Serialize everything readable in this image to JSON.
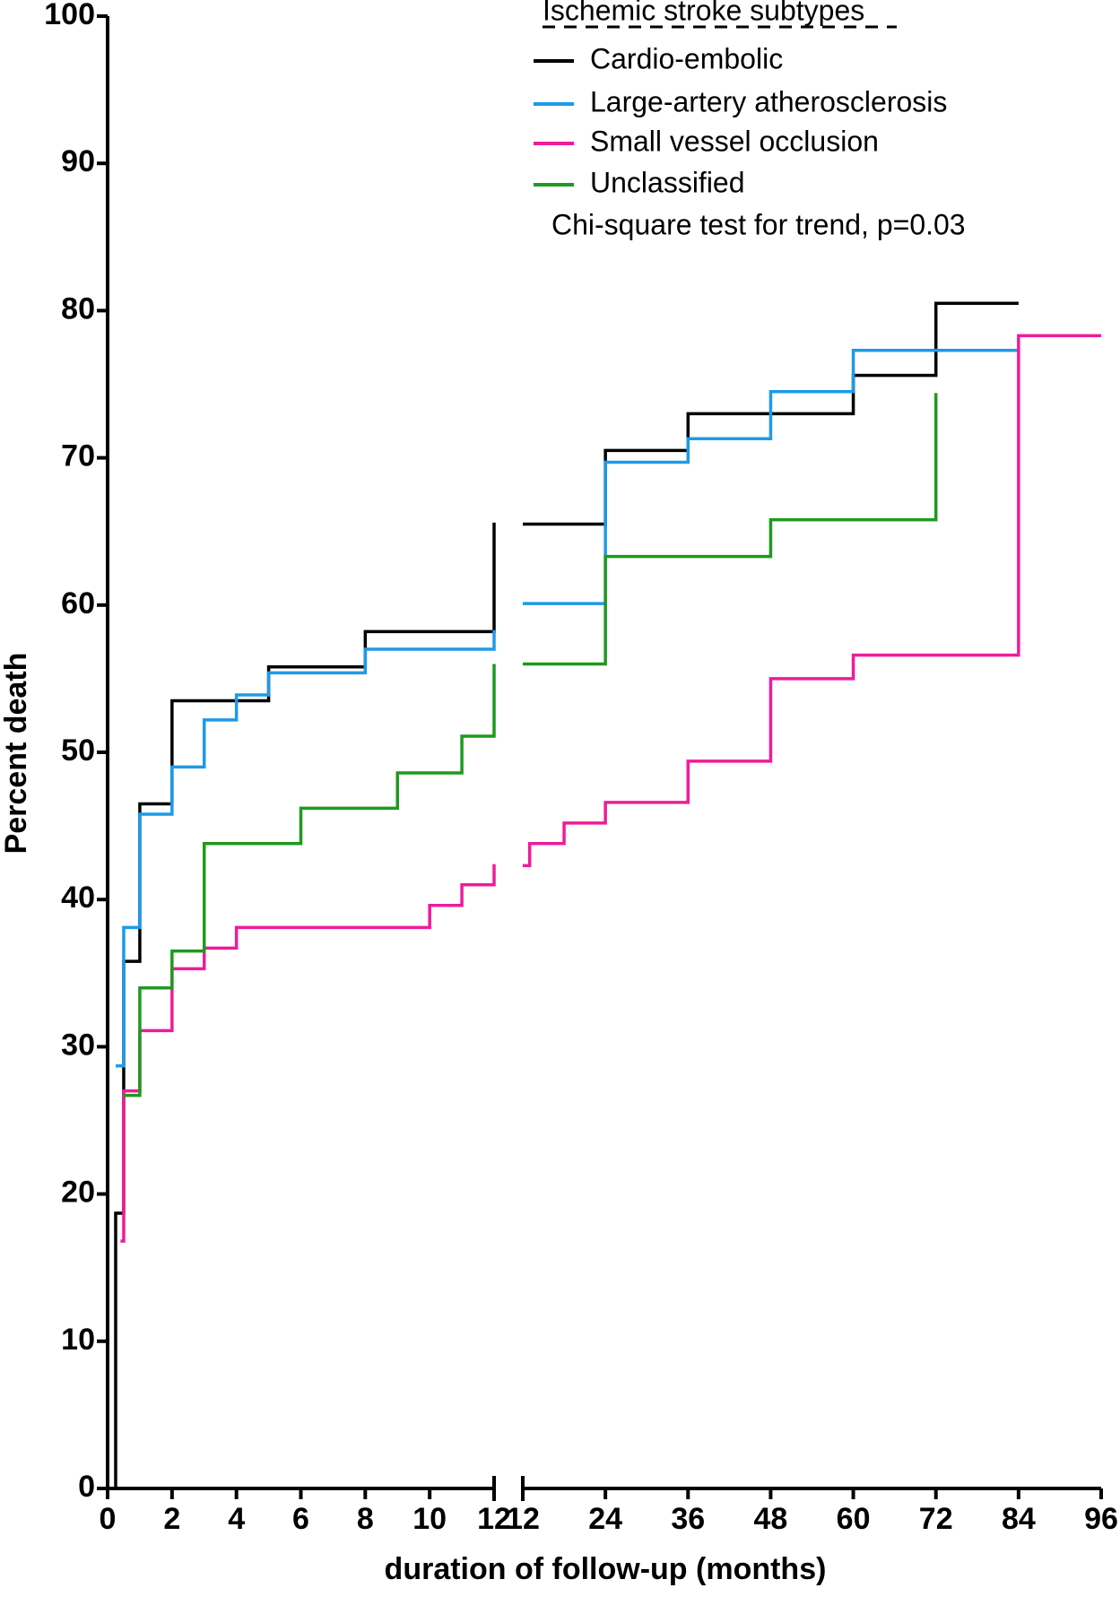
{
  "chart_data": [
    {
      "type": "step",
      "ylabel": "Percent death",
      "xlabel": "duration of follow-up (months)",
      "legend_title": "Ischemic stroke subtypes",
      "annotation": "Chi-square test for trend, p=0.03",
      "xlim": [
        0,
        12
      ],
      "xticks": [
        0,
        2,
        4,
        6,
        8,
        10,
        12
      ],
      "ylim": [
        0,
        100
      ],
      "yticks": [
        0,
        10,
        20,
        30,
        40,
        50,
        60,
        70,
        80,
        90,
        100
      ],
      "series": [
        {
          "name": "Cardio-embolic",
          "color": "#000000",
          "x": [
            0,
            0.25,
            0.5,
            1,
            2,
            5,
            8,
            12
          ],
          "values": [
            0,
            18.7,
            35.8,
            46.5,
            53.5,
            55.8,
            58.2,
            65.6
          ]
        },
        {
          "name": "Large-artery atherosclerosis",
          "color": "#1e9ae8",
          "x": [
            0.25,
            0.5,
            1,
            2,
            3,
            4,
            5,
            8,
            12
          ],
          "values": [
            28.7,
            38.1,
            45.8,
            49,
            52.2,
            53.9,
            55.4,
            57,
            58.3
          ]
        },
        {
          "name": "Small vessel occlusion",
          "color": "#ee1c9a",
          "x": [
            0.4,
            0.5,
            1,
            2,
            3,
            4,
            10,
            11,
            12
          ],
          "values": [
            16.8,
            27,
            31.1,
            35.3,
            36.7,
            38.1,
            39.6,
            41,
            42.4
          ]
        },
        {
          "name": "Unclassified",
          "color": "#1e9a1e",
          "x": [
            0.5,
            1,
            2,
            3,
            6,
            9,
            11,
            12
          ],
          "values": [
            26.7,
            34,
            36.5,
            43.8,
            46.2,
            48.6,
            51.1,
            56
          ]
        }
      ]
    },
    {
      "type": "step",
      "xlim": [
        12,
        96
      ],
      "xticks": [
        12,
        24,
        36,
        48,
        60,
        72,
        84,
        96
      ],
      "ylim": [
        0,
        100
      ],
      "series": [
        {
          "color": "#000000",
          "x": [
            12,
            24,
            36,
            60,
            72,
            84
          ],
          "values": [
            65.5,
            70.5,
            73,
            75.6,
            80.5,
            80.5
          ]
        },
        {
          "color": "#1e9ae8",
          "x": [
            12,
            24,
            36,
            48,
            60,
            84
          ],
          "values": [
            60.1,
            69.7,
            71.3,
            74.5,
            77.3,
            77.3
          ]
        },
        {
          "color": "#ee1c9a",
          "x": [
            12,
            13,
            18,
            24,
            36,
            48,
            60,
            84,
            96
          ],
          "values": [
            42.3,
            43.8,
            45.2,
            46.6,
            49.4,
            55,
            56.6,
            78.3,
            78.3
          ]
        },
        {
          "color": "#1e9a1e",
          "x": [
            12,
            24,
            48,
            72
          ],
          "values": [
            56,
            63.3,
            65.8,
            74.4
          ]
        }
      ]
    }
  ]
}
